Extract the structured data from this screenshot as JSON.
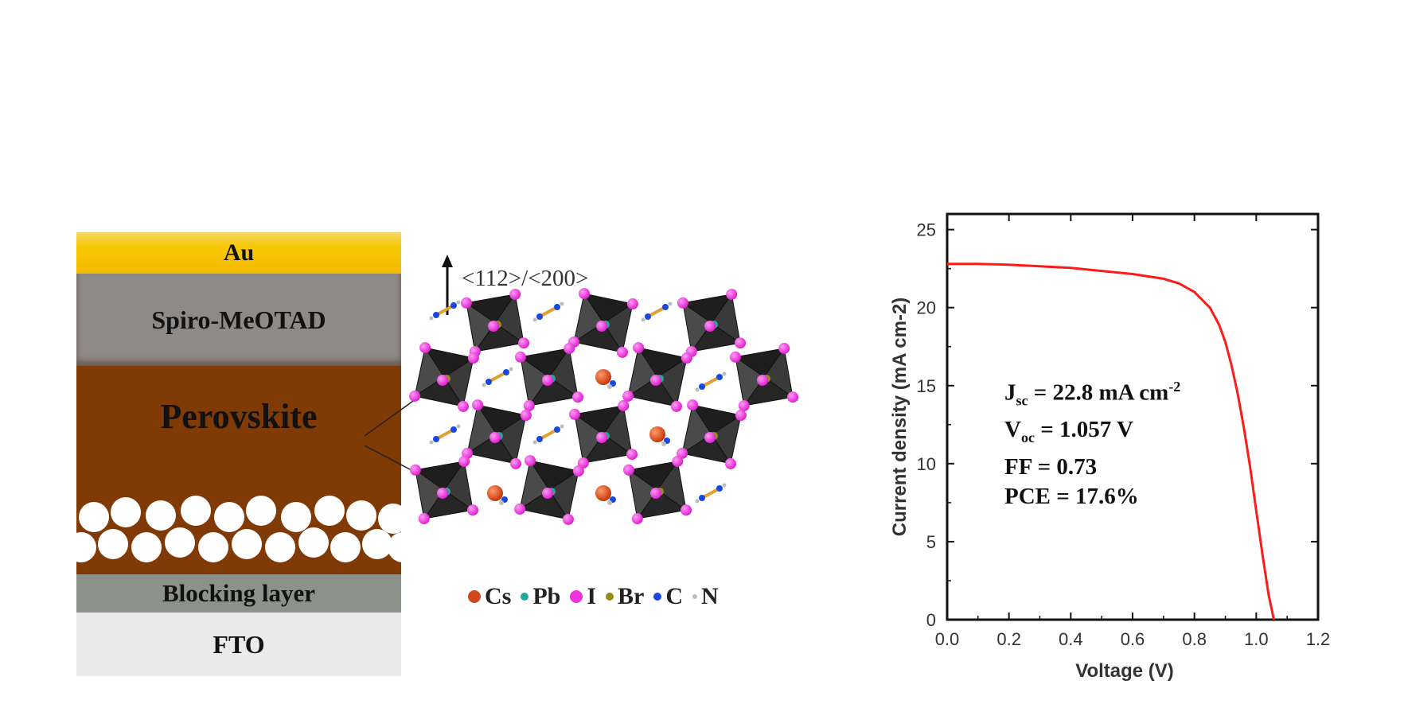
{
  "layers": {
    "au": "Au",
    "spiro": "Spiro-MeOTAD",
    "perovskite": "Perovskite",
    "blocking": "Blocking layer",
    "fto": "FTO"
  },
  "crystal": {
    "direction_label": "<112>/<200>",
    "legend": [
      {
        "label": "Cs",
        "color": "#d1481d"
      },
      {
        "label": "Pb",
        "color": "#1ea89a"
      },
      {
        "label": "I",
        "color": "#ee33dd"
      },
      {
        "label": "Br",
        "color": "#9a8a10"
      },
      {
        "label": "C",
        "color": "#1848e0"
      },
      {
        "label": "N",
        "color": "#bdbdbd"
      }
    ]
  },
  "params": {
    "jsc_sub": "sc",
    "jsc_value": " = 22.8 mA cm",
    "jsc_sup": "-2",
    "voc_sub": "oc",
    "voc_value": " = 1.057 V",
    "ff": "FF = 0.73",
    "pce": "PCE = 17.6%"
  },
  "chart_data": {
    "type": "line",
    "xlabel": "Voltage (V)",
    "ylabel": "Current density (mA cm-2)",
    "xlim": [
      0.0,
      1.2
    ],
    "ylim": [
      0,
      26
    ],
    "xticks": [
      "0.0",
      "0.2",
      "0.4",
      "0.6",
      "0.8",
      "1.0",
      "1.2"
    ],
    "yticks": [
      "0",
      "5",
      "10",
      "15",
      "20",
      "25"
    ],
    "series": [
      {
        "color": "#ff1a1a",
        "x": [
          0.0,
          0.1,
          0.2,
          0.3,
          0.4,
          0.5,
          0.6,
          0.7,
          0.75,
          0.8,
          0.85,
          0.88,
          0.9,
          0.92,
          0.94,
          0.96,
          0.98,
          1.0,
          1.02,
          1.04,
          1.057
        ],
        "y": [
          22.8,
          22.8,
          22.75,
          22.65,
          22.55,
          22.35,
          22.15,
          21.85,
          21.55,
          21.0,
          20.0,
          18.9,
          17.8,
          16.3,
          14.5,
          12.3,
          9.8,
          7.0,
          4.2,
          1.6,
          0
        ]
      }
    ],
    "grid": false,
    "legend": "none"
  }
}
